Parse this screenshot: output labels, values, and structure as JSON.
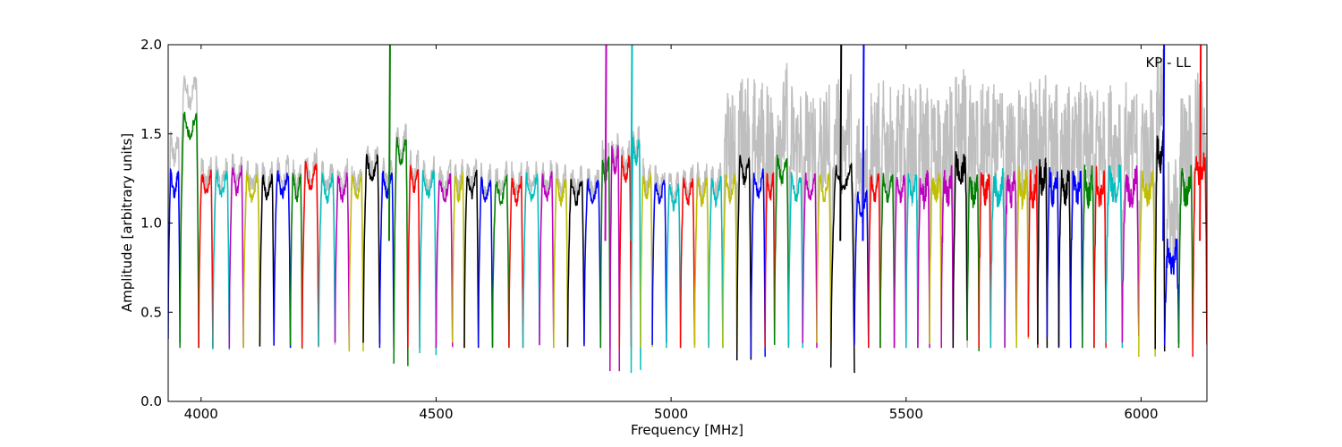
{
  "chart_data": {
    "type": "line",
    "xlabel": "Frequency [MHz]",
    "ylabel": "Amplitude [arbitrary units]",
    "xlim": [
      3930,
      6140
    ],
    "ylim": [
      0.0,
      2.0
    ],
    "xticks": [
      4000,
      4500,
      5000,
      5500,
      6000
    ],
    "yticks": [
      0.0,
      0.5,
      1.0,
      1.5,
      2.0
    ],
    "xtick_labels": [
      "4000",
      "4500",
      "5000",
      "5500",
      "6000"
    ],
    "ytick_labels": [
      "0.0",
      "0.5",
      "1.0",
      "1.5",
      "2.0"
    ],
    "annotation": "KP - LL",
    "grid": false,
    "legend": "none",
    "background_series": {
      "color": "#bfbfbf",
      "description_values": "raw spectrum envelope, ~0.25 higher than colored channels in high-frequency region"
    },
    "channel_colors": [
      "#0000ff",
      "#008000",
      "#ff0000",
      "#00bfbf",
      "#bf00bf",
      "#bfbf00",
      "#000000"
    ],
    "channels": [
      {
        "start": 3930,
        "end": 3955,
        "level": 1.22,
        "min": 0.33,
        "color": "#0000ff"
      },
      {
        "start": 3955,
        "end": 3995,
        "level": 1.55,
        "min": 0.3,
        "color": "#008000"
      },
      {
        "start": 3995,
        "end": 4025,
        "level": 1.22,
        "min": 0.3,
        "color": "#ff0000"
      },
      {
        "start": 4025,
        "end": 4060,
        "level": 1.22,
        "min": 0.29,
        "color": "#00bfbf"
      },
      {
        "start": 4060,
        "end": 4090,
        "level": 1.24,
        "min": 0.3,
        "color": "#bf00bf"
      },
      {
        "start": 4090,
        "end": 4125,
        "level": 1.2,
        "min": 0.3,
        "color": "#bfbf00"
      },
      {
        "start": 4125,
        "end": 4155,
        "level": 1.2,
        "min": 0.3,
        "color": "#000000"
      },
      {
        "start": 4155,
        "end": 4190,
        "level": 1.22,
        "min": 0.3,
        "color": "#0000ff"
      },
      {
        "start": 4190,
        "end": 4215,
        "level": 1.2,
        "min": 0.29,
        "color": "#008000"
      },
      {
        "start": 4215,
        "end": 4250,
        "level": 1.26,
        "min": 0.3,
        "color": "#ff0000"
      },
      {
        "start": 4250,
        "end": 4285,
        "level": 1.2,
        "min": 0.31,
        "color": "#00bfbf"
      },
      {
        "start": 4285,
        "end": 4315,
        "level": 1.2,
        "min": 0.3,
        "color": "#bf00bf"
      },
      {
        "start": 4315,
        "end": 4345,
        "level": 1.2,
        "min": 0.28,
        "color": "#bfbf00"
      },
      {
        "start": 4345,
        "end": 4380,
        "level": 1.3,
        "min": 0.3,
        "color": "#000000"
      },
      {
        "start": 4380,
        "end": 4410,
        "level": 1.22,
        "min": 0.3,
        "color": "#0000ff"
      },
      {
        "start": 4410,
        "end": 4440,
        "level": 1.4,
        "min": 0.19,
        "color": "#008000"
      },
      {
        "start": 4440,
        "end": 4465,
        "level": 1.25,
        "min": 0.3,
        "color": "#ff0000"
      },
      {
        "start": 4465,
        "end": 4500,
        "level": 1.22,
        "min": 0.26,
        "color": "#00bfbf"
      },
      {
        "start": 4500,
        "end": 4535,
        "level": 1.2,
        "min": 0.3,
        "color": "#bf00bf"
      },
      {
        "start": 4535,
        "end": 4560,
        "level": 1.2,
        "min": 0.3,
        "color": "#bfbf00"
      },
      {
        "start": 4560,
        "end": 4590,
        "level": 1.22,
        "min": 0.3,
        "color": "#000000"
      },
      {
        "start": 4590,
        "end": 4620,
        "level": 1.18,
        "min": 0.3,
        "color": "#0000ff"
      },
      {
        "start": 4620,
        "end": 4655,
        "level": 1.18,
        "min": 0.3,
        "color": "#008000"
      },
      {
        "start": 4655,
        "end": 4685,
        "level": 1.18,
        "min": 0.3,
        "color": "#ff0000"
      },
      {
        "start": 4685,
        "end": 4720,
        "level": 1.2,
        "min": 0.3,
        "color": "#00bfbf"
      },
      {
        "start": 4720,
        "end": 4750,
        "level": 1.2,
        "min": 0.3,
        "color": "#bf00bf"
      },
      {
        "start": 4750,
        "end": 4780,
        "level": 1.18,
        "min": 0.3,
        "color": "#bfbf00"
      },
      {
        "start": 4780,
        "end": 4815,
        "level": 1.18,
        "min": 0.3,
        "color": "#000000"
      },
      {
        "start": 4815,
        "end": 4850,
        "level": 1.18,
        "min": 0.3,
        "color": "#0000ff"
      },
      {
        "start": 4850,
        "end": 4870,
        "level": 1.3,
        "min": 0.3,
        "color": "#008000"
      },
      {
        "start": 4870,
        "end": 4890,
        "level": 1.35,
        "min": 0.17,
        "color": "#bf00bf"
      },
      {
        "start": 4890,
        "end": 4915,
        "level": 1.3,
        "min": 0.3,
        "color": "#ff0000"
      },
      {
        "start": 4915,
        "end": 4935,
        "level": 1.4,
        "min": 0.16,
        "color": "#00bfbf"
      },
      {
        "start": 4935,
        "end": 4960,
        "level": 1.2,
        "min": 0.3,
        "color": "#bfbf00"
      },
      {
        "start": 4960,
        "end": 4990,
        "level": 1.18,
        "min": 0.3,
        "color": "#0000ff"
      },
      {
        "start": 4990,
        "end": 5020,
        "level": 1.15,
        "min": 0.3,
        "color": "#00bfbf"
      },
      {
        "start": 5020,
        "end": 5050,
        "level": 1.18,
        "min": 0.3,
        "color": "#ff0000"
      },
      {
        "start": 5050,
        "end": 5080,
        "level": 1.18,
        "min": 0.3,
        "color": "#bfbf00"
      },
      {
        "start": 5080,
        "end": 5110,
        "level": 1.18,
        "min": 0.3,
        "color": "#00bfbf"
      },
      {
        "start": 5110,
        "end": 5140,
        "level": 1.2,
        "min": 0.28,
        "color": "#bfbf00"
      },
      {
        "start": 5140,
        "end": 5170,
        "level": 1.3,
        "min": 0.22,
        "color": "#000000"
      },
      {
        "start": 5170,
        "end": 5200,
        "level": 1.22,
        "min": 0.25,
        "color": "#0000ff"
      },
      {
        "start": 5200,
        "end": 5220,
        "level": 1.2,
        "min": 0.3,
        "color": "#ff0000"
      },
      {
        "start": 5220,
        "end": 5250,
        "level": 1.3,
        "min": 0.3,
        "color": "#008000"
      },
      {
        "start": 5250,
        "end": 5280,
        "level": 1.2,
        "min": 0.3,
        "color": "#00bfbf"
      },
      {
        "start": 5280,
        "end": 5310,
        "level": 1.2,
        "min": 0.3,
        "color": "#bf00bf"
      },
      {
        "start": 5310,
        "end": 5340,
        "level": 1.2,
        "min": 0.3,
        "color": "#bfbf00"
      },
      {
        "start": 5340,
        "end": 5390,
        "level": 1.25,
        "min": 0.16,
        "color": "#000000"
      },
      {
        "start": 5390,
        "end": 5420,
        "level": 1.1,
        "min": 0.3,
        "color": "#0000ff"
      },
      {
        "start": 5420,
        "end": 5445,
        "level": 1.2,
        "min": 0.3,
        "color": "#ff0000"
      },
      {
        "start": 5445,
        "end": 5475,
        "level": 1.2,
        "min": 0.3,
        "color": "#008000"
      },
      {
        "start": 5475,
        "end": 5500,
        "level": 1.2,
        "min": 0.3,
        "color": "#bf00bf"
      },
      {
        "start": 5500,
        "end": 5525,
        "level": 1.2,
        "min": 0.3,
        "color": "#00bfbf"
      },
      {
        "start": 5525,
        "end": 5550,
        "level": 1.2,
        "min": 0.3,
        "color": "#bf00bf"
      },
      {
        "start": 5550,
        "end": 5575,
        "level": 1.2,
        "min": 0.3,
        "color": "#bfbf00"
      },
      {
        "start": 5575,
        "end": 5600,
        "level": 1.2,
        "min": 0.3,
        "color": "#bf00bf"
      },
      {
        "start": 5600,
        "end": 5630,
        "level": 1.3,
        "min": 0.3,
        "color": "#000000"
      },
      {
        "start": 5630,
        "end": 5655,
        "level": 1.2,
        "min": 0.28,
        "color": "#008000"
      },
      {
        "start": 5655,
        "end": 5680,
        "level": 1.22,
        "min": 0.3,
        "color": "#ff0000"
      },
      {
        "start": 5680,
        "end": 5710,
        "level": 1.2,
        "min": 0.3,
        "color": "#00bfbf"
      },
      {
        "start": 5710,
        "end": 5735,
        "level": 1.2,
        "min": 0.3,
        "color": "#bf00bf"
      },
      {
        "start": 5735,
        "end": 5760,
        "level": 1.2,
        "min": 0.3,
        "color": "#bfbf00"
      },
      {
        "start": 5760,
        "end": 5780,
        "level": 1.2,
        "min": 0.3,
        "color": "#ff0000"
      },
      {
        "start": 5780,
        "end": 5800,
        "level": 1.25,
        "min": 0.3,
        "color": "#000000"
      },
      {
        "start": 5800,
        "end": 5825,
        "level": 1.2,
        "min": 0.3,
        "color": "#0000ff"
      },
      {
        "start": 5825,
        "end": 5850,
        "level": 1.2,
        "min": 0.3,
        "color": "#000000"
      },
      {
        "start": 5850,
        "end": 5875,
        "level": 1.2,
        "min": 0.3,
        "color": "#0000ff"
      },
      {
        "start": 5875,
        "end": 5900,
        "level": 1.2,
        "min": 0.3,
        "color": "#008000"
      },
      {
        "start": 5900,
        "end": 5925,
        "level": 1.2,
        "min": 0.3,
        "color": "#ff0000"
      },
      {
        "start": 5925,
        "end": 5960,
        "level": 1.22,
        "min": 0.3,
        "color": "#00bfbf"
      },
      {
        "start": 5960,
        "end": 5995,
        "level": 1.2,
        "min": 0.3,
        "color": "#bf00bf"
      },
      {
        "start": 5995,
        "end": 6030,
        "level": 1.2,
        "min": 0.25,
        "color": "#bfbf00"
      },
      {
        "start": 6030,
        "end": 6050,
        "level": 1.4,
        "min": 0.28,
        "color": "#000000"
      },
      {
        "start": 6050,
        "end": 6080,
        "level": 0.8,
        "min": 0.3,
        "color": "#0000ff"
      },
      {
        "start": 6080,
        "end": 6110,
        "level": 1.2,
        "min": 0.3,
        "color": "#008000"
      },
      {
        "start": 6110,
        "end": 6140,
        "level": 1.3,
        "min": 0.25,
        "color": "#ff0000"
      }
    ],
    "spikes": [
      {
        "x": 4400,
        "y": 2.0,
        "color": "#008000"
      },
      {
        "x": 4860,
        "y": 2.0,
        "color": "#bf00bf"
      },
      {
        "x": 4915,
        "y": 2.0,
        "color": "#00bfbf"
      },
      {
        "x": 5360,
        "y": 2.0,
        "color": "#000000"
      },
      {
        "x": 5408,
        "y": 2.0,
        "color": "#0000ff"
      },
      {
        "x": 6047,
        "y": 2.0,
        "color": "#0000ff"
      },
      {
        "x": 6125,
        "y": 2.0,
        "color": "#ff0000"
      }
    ]
  }
}
